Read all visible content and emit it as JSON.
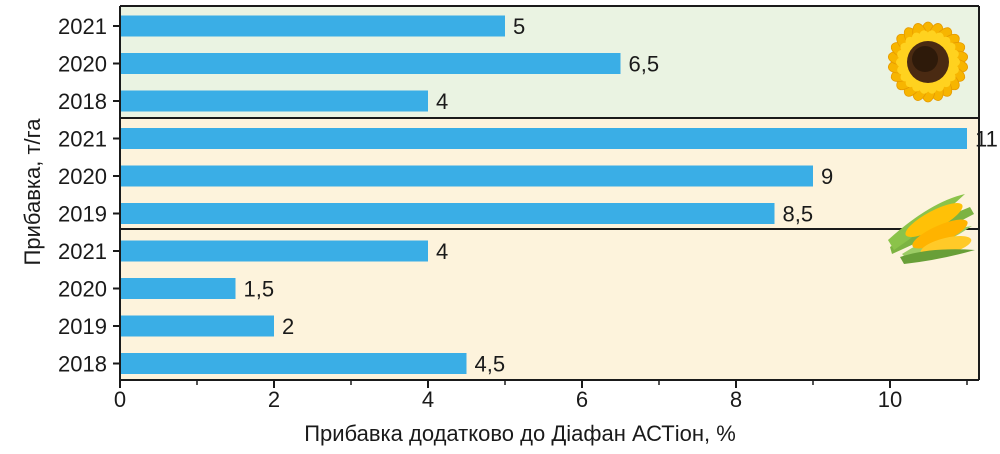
{
  "chart_data": {
    "type": "bar",
    "orientation": "horizontal",
    "xlabel": "Прибавка додатково до Діафан АСТіон, %",
    "ylabel": "Прибавка, т/га",
    "xlim": [
      0,
      11.2
    ],
    "xticks": [
      0,
      2,
      4,
      6,
      8,
      10
    ],
    "bar_color": "#3aaee6",
    "groups": [
      {
        "icon": "sunflower-icon",
        "background": "#eaf3e2",
        "categories": [
          "2021",
          "2020",
          "2018"
        ],
        "values": [
          5,
          6.5,
          4
        ],
        "value_labels": [
          "5",
          "6,5",
          "4"
        ]
      },
      {
        "icon": "corn-icon",
        "background": "#fdf3dc",
        "categories": [
          "2021",
          "2020",
          "2019"
        ],
        "values": [
          11,
          9,
          8.5
        ],
        "value_labels": [
          "11",
          "9",
          "8,5"
        ]
      },
      {
        "background": "#fdf3dc",
        "categories": [
          "2021",
          "2020",
          "2019",
          "2018"
        ],
        "values": [
          4,
          1.5,
          2,
          4.5
        ],
        "value_labels": [
          "4",
          "1,5",
          "2",
          "4,5"
        ]
      }
    ]
  }
}
